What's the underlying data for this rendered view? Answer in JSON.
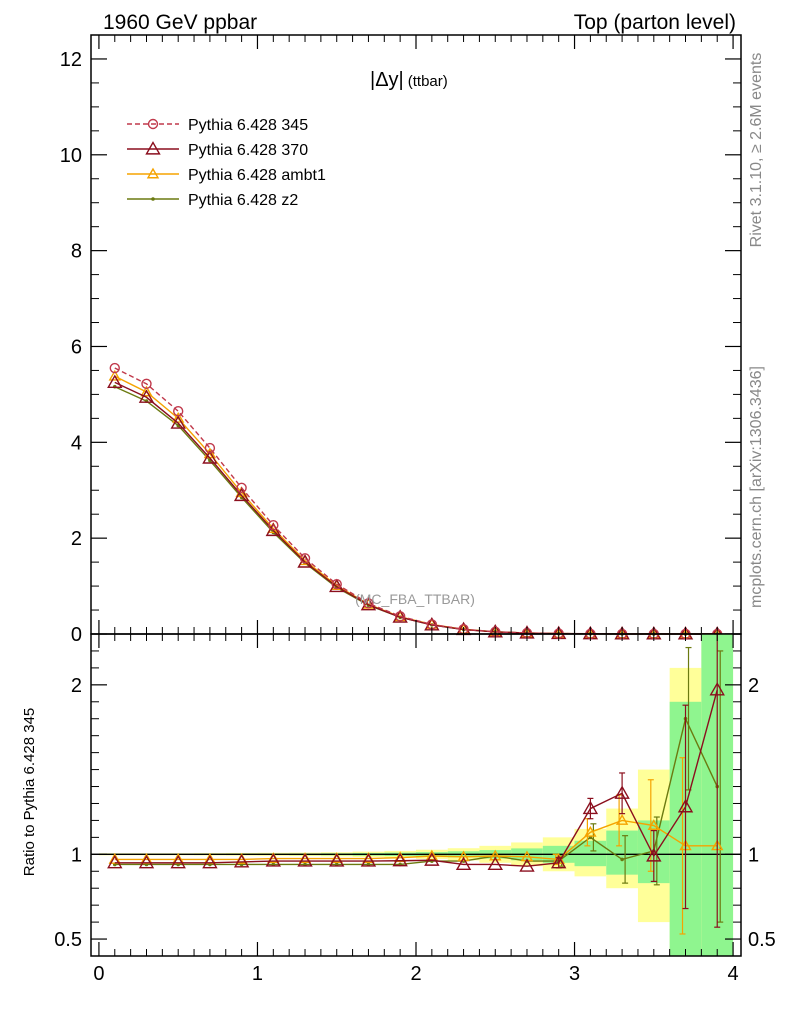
{
  "header": {
    "left": "1960 GeV ppbar",
    "right": "Top (parton level)"
  },
  "side_text": {
    "rivet": "Rivet 3.1.10, ≥ 2.6M events",
    "mcplots": "mcplots.cern.ch [arXiv:1306.3436]"
  },
  "watermark": "(MC_FBA_TTBAR)",
  "plot_title": {
    "main": "|Δy|",
    "sub": "(ttbar)"
  },
  "ratio_ylabel": "Ratio to Pythia 6.428 345",
  "colors": {
    "p345": "#c0394b",
    "p370": "#8b0f1e",
    "ambt1": "#f5a300",
    "z2": "#6b7a10",
    "band_inner": "#8ff58f",
    "band_outer": "#ffff99"
  },
  "chart_data": [
    {
      "type": "line",
      "panel": "main",
      "x": [
        0.1,
        0.3,
        0.5,
        0.7,
        0.9,
        1.1,
        1.3,
        1.5,
        1.7,
        1.9,
        2.1,
        2.3,
        2.5,
        2.7,
        2.9,
        3.1,
        3.3,
        3.5,
        3.7,
        3.9
      ],
      "xlim": [
        -0.05,
        4.05
      ],
      "ylim": [
        0,
        12.5
      ],
      "xticks": [
        "0",
        "1",
        "2",
        "3",
        "4"
      ],
      "yticks": [
        "0",
        "2",
        "4",
        "6",
        "8",
        "10",
        "12"
      ],
      "legend_position": "top-left",
      "series": [
        {
          "name": "Pythia 6.428 345",
          "key": "p345",
          "values": [
            5.55,
            5.22,
            4.65,
            3.88,
            3.05,
            2.27,
            1.58,
            1.04,
            0.64,
            0.37,
            0.2,
            0.1,
            0.047,
            0.021,
            0.009,
            0.004,
            0.0017,
            0.0007,
            0.0003,
            0.0001
          ]
        },
        {
          "name": "Pythia 6.428 370",
          "key": "p370",
          "values": [
            5.25,
            4.94,
            4.4,
            3.67,
            2.89,
            2.16,
            1.5,
            0.99,
            0.61,
            0.35,
            0.19,
            0.093,
            0.044,
            0.02,
            0.0086,
            0.005,
            0.0023,
            0.0007,
            0.0004,
            0.0002
          ]
        },
        {
          "name": "Pythia 6.428 ambt1",
          "key": "ambt1",
          "values": [
            5.38,
            5.05,
            4.5,
            3.76,
            2.95,
            2.2,
            1.53,
            1.01,
            0.62,
            0.36,
            0.2,
            0.097,
            0.046,
            0.021,
            0.0087,
            0.0045,
            0.002,
            0.0008,
            0.0003,
            0.0001
          ]
        },
        {
          "name": "Pythia 6.428 z2",
          "key": "z2",
          "values": [
            5.16,
            4.86,
            4.35,
            3.62,
            2.85,
            2.12,
            1.48,
            0.97,
            0.6,
            0.35,
            0.19,
            0.094,
            0.045,
            0.02,
            0.0087,
            0.0045,
            0.0016,
            0.0007,
            0.0005,
            0.0001
          ]
        }
      ]
    },
    {
      "type": "line",
      "panel": "ratio",
      "x": [
        0.1,
        0.3,
        0.5,
        0.7,
        0.9,
        1.1,
        1.3,
        1.5,
        1.7,
        1.9,
        2.1,
        2.3,
        2.5,
        2.7,
        2.9,
        3.1,
        3.3,
        3.5,
        3.7,
        3.9
      ],
      "xlim": [
        -0.05,
        4.05
      ],
      "ylim": [
        0.4,
        2.3
      ],
      "xticks": [
        "0",
        "1",
        "2",
        "3",
        "4"
      ],
      "yticks": [
        "0.5",
        "1",
        "2"
      ],
      "reference_line": 1,
      "band_inner": [
        [
          1.003,
          0.997
        ],
        [
          1.003,
          0.997
        ],
        [
          1.003,
          0.997
        ],
        [
          1.003,
          0.997
        ],
        [
          1.004,
          0.996
        ],
        [
          1.004,
          0.996
        ],
        [
          1.005,
          0.995
        ],
        [
          1.006,
          0.994
        ],
        [
          1.008,
          0.992
        ],
        [
          1.01,
          0.99
        ],
        [
          1.013,
          0.987
        ],
        [
          1.018,
          0.982
        ],
        [
          1.025,
          0.975
        ],
        [
          1.035,
          0.965
        ],
        [
          1.05,
          0.95
        ],
        [
          1.08,
          0.93
        ],
        [
          1.14,
          0.88
        ],
        [
          1.2,
          0.83
        ],
        [
          1.9,
          0.35
        ],
        [
          2.3,
          0.35
        ]
      ],
      "band_outer": [
        [
          1.006,
          0.994
        ],
        [
          1.006,
          0.994
        ],
        [
          1.006,
          0.994
        ],
        [
          1.007,
          0.993
        ],
        [
          1.008,
          0.992
        ],
        [
          1.009,
          0.991
        ],
        [
          1.01,
          0.99
        ],
        [
          1.012,
          0.988
        ],
        [
          1.016,
          0.984
        ],
        [
          1.02,
          0.98
        ],
        [
          1.027,
          0.973
        ],
        [
          1.036,
          0.964
        ],
        [
          1.05,
          0.95
        ],
        [
          1.07,
          0.93
        ],
        [
          1.1,
          0.9
        ],
        [
          1.15,
          0.87
        ],
        [
          1.27,
          0.8
        ],
        [
          1.5,
          0.6
        ],
        [
          2.1,
          0.35
        ],
        [
          2.3,
          0.35
        ]
      ],
      "series": [
        {
          "name": "Pythia 6.428 370",
          "key": "p370",
          "values": [
            0.95,
            0.95,
            0.95,
            0.95,
            0.955,
            0.96,
            0.96,
            0.96,
            0.96,
            0.962,
            0.965,
            0.94,
            0.94,
            0.93,
            0.95,
            1.27,
            1.36,
            0.99,
            1.28,
            1.97
          ],
          "errors": [
            0,
            0,
            0,
            0,
            0,
            0,
            0,
            0,
            0,
            0,
            0,
            0,
            0,
            0,
            0.03,
            0.06,
            0.12,
            0.15,
            0.6,
            1.4
          ]
        },
        {
          "name": "Pythia 6.428 ambt1",
          "key": "ambt1",
          "values": [
            0.97,
            0.97,
            0.97,
            0.97,
            0.97,
            0.975,
            0.975,
            0.975,
            0.975,
            0.98,
            0.99,
            0.985,
            0.99,
            0.985,
            0.97,
            1.13,
            1.2,
            1.17,
            1.05,
            1.05
          ],
          "errors": [
            0,
            0,
            0,
            0,
            0,
            0,
            0,
            0,
            0,
            0,
            0,
            0,
            0,
            0,
            0.03,
            0.08,
            0.15,
            0.27,
            0.52,
            0
          ]
        },
        {
          "name": "Pythia 6.428 z2",
          "key": "z2",
          "values": [
            0.94,
            0.94,
            0.94,
            0.94,
            0.94,
            0.94,
            0.94,
            0.94,
            0.94,
            0.94,
            0.96,
            0.96,
            0.99,
            0.96,
            0.96,
            1.1,
            0.97,
            1.02,
            1.8,
            1.4
          ],
          "errors": [
            0,
            0,
            0,
            0,
            0,
            0,
            0,
            0,
            0,
            0,
            0,
            0,
            0,
            0,
            0.03,
            0.08,
            0.14,
            0.2,
            0.42,
            0.8
          ]
        }
      ]
    }
  ]
}
